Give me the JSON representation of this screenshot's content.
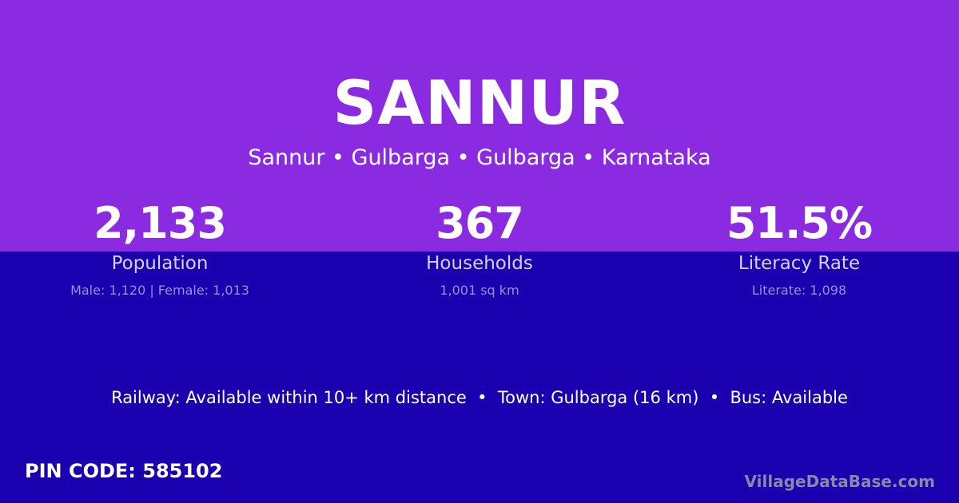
{
  "colors": {
    "top_bg": "#8a2be2",
    "bottom_bg": "#1a00ae"
  },
  "title": "SANNUR",
  "subtitle": "Sannur • Gulbarga • Gulbarga • Karnataka",
  "stats": [
    {
      "value": "2,133",
      "label": "Population",
      "detail": "Male: 1,120 | Female: 1,013"
    },
    {
      "value": "367",
      "label": "Households",
      "detail": "1,001 sq km"
    },
    {
      "value": "51.5%",
      "label": "Literacy Rate",
      "detail": "Literate: 1,098"
    }
  ],
  "amenities": "Railway: Available within 10+ km distance  •  Town: Gulbarga (16 km)  •  Bus: Available",
  "pin": "PIN CODE: 585102",
  "brand": "VillageDataBase.com"
}
